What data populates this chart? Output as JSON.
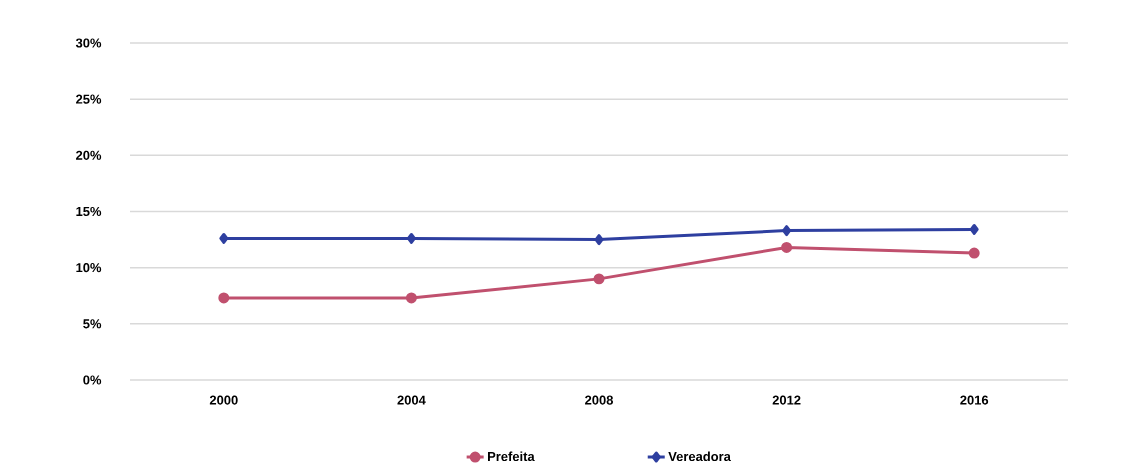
{
  "chart_data": {
    "type": "line",
    "categories": [
      "2000",
      "2004",
      "2008",
      "2012",
      "2016"
    ],
    "series": [
      {
        "name": "Prefeita",
        "color": "#c0506e",
        "marker": "circle",
        "values": [
          7.3,
          7.3,
          9.0,
          11.8,
          11.3
        ]
      },
      {
        "name": "Vereadora",
        "color": "#2e3fa0",
        "marker": "diamond",
        "values": [
          12.6,
          12.6,
          12.5,
          13.3,
          13.4
        ]
      }
    ],
    "ylim": [
      0,
      30
    ],
    "yticks": [
      {
        "value": 0,
        "label": "0%"
      },
      {
        "value": 5,
        "label": "5%"
      },
      {
        "value": 10,
        "label": "10%"
      },
      {
        "value": 15,
        "label": "15%"
      },
      {
        "value": 20,
        "label": "20%"
      },
      {
        "value": 25,
        "label": "25%"
      },
      {
        "value": 30,
        "label": "30%"
      }
    ],
    "grid": "y",
    "legend": "bottom",
    "line_style": "solid"
  }
}
